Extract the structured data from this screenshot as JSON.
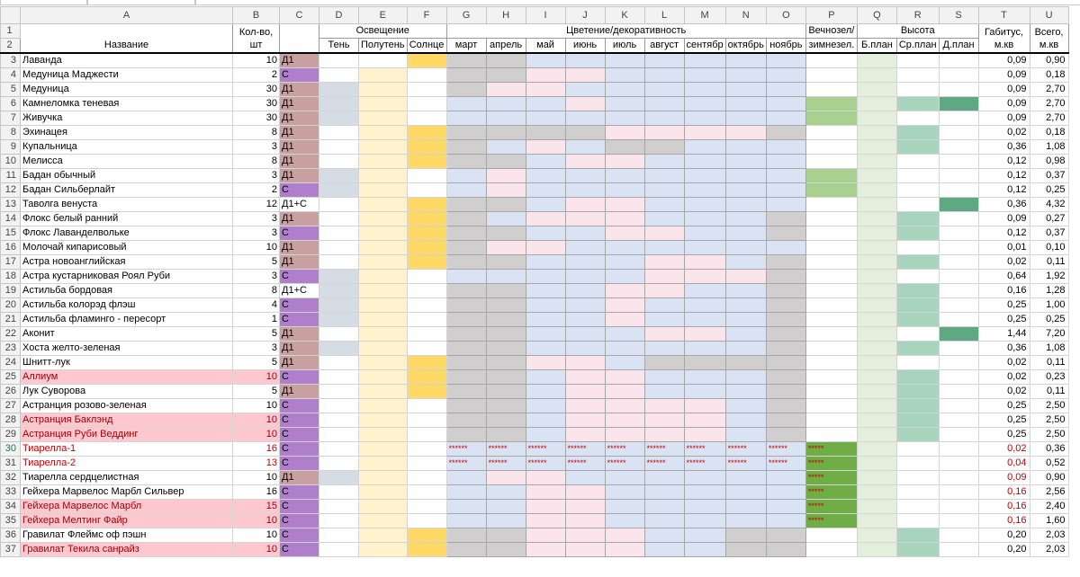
{
  "columns": [
    "A",
    "B",
    "C",
    "D",
    "E",
    "F",
    "G",
    "H",
    "I",
    "J",
    "K",
    "L",
    "M",
    "N",
    "O",
    "P",
    "Q",
    "R",
    "S",
    "T",
    "U"
  ],
  "header": {
    "name": "Название",
    "qty": "Кол-во, шт",
    "lighting": "Освещение",
    "flowering": "Цветение/декоративность",
    "evergreen_line1": "Вечнозел/",
    "evergreen_line2": "зимнезел.",
    "height": "Высота",
    "habitus": "Габитус, м.кв",
    "total": "Всего, м.кв",
    "light_cols": [
      "Тень",
      "Полутень",
      "Солнце"
    ],
    "months": [
      "март",
      "апрель",
      "май",
      "июнь",
      "июль",
      "август",
      "сентябр",
      "октябрь",
      "ноябрь"
    ],
    "height_cols": [
      "Б.план",
      "Ср.план",
      "Д.план"
    ]
  },
  "star_text": "******",
  "rows": [
    {
      "n": 3,
      "name": "Лаванда",
      "qty": "10",
      "type": "Д1",
      "light": "sol",
      "months": "G____________",
      "ev": "",
      "h": "",
      "hab": "0,09",
      "tot": "0,90"
    },
    {
      "n": 4,
      "name": "Медуница Маджести",
      "qty": "2",
      "type": "С",
      "light": "pol",
      "h": "",
      "hab": "0,09",
      "tot": "0,18"
    },
    {
      "n": 5,
      "name": "Медуница",
      "qty": "30",
      "type": "Д1",
      "light": "ten-pol",
      "h": "",
      "hab": "0,09",
      "tot": "2,70"
    },
    {
      "n": 6,
      "name": "Камнеломка теневая",
      "qty": "30",
      "type": "Д1",
      "light": "ten-pol",
      "ev": "g",
      "h": "bsd",
      "hab": "0,09",
      "tot": "2,70"
    },
    {
      "n": 7,
      "name": "Живучка",
      "qty": "30",
      "type": "Д1",
      "light": "ten-pol",
      "ev": "g",
      "h": "b",
      "hab": "0,09",
      "tot": "2,70"
    },
    {
      "n": 8,
      "name": "Эхинацея",
      "qty": "8",
      "type": "Д1",
      "light": "pol-sol",
      "h": "s",
      "hab": "0,02",
      "tot": "0,18"
    },
    {
      "n": 9,
      "name": "Купальница",
      "qty": "3",
      "type": "Д1",
      "light": "pol-sol",
      "h": "s",
      "hab": "0,36",
      "tot": "1,08"
    },
    {
      "n": 10,
      "name": "Мелисса",
      "qty": "8",
      "type": "Д1",
      "light": "pol-sol",
      "h": "",
      "hab": "0,12",
      "tot": "0,98"
    },
    {
      "n": 11,
      "name": "Бадан обычный",
      "qty": "3",
      "type": "Д1",
      "light": "ten-pol",
      "ev": "g",
      "h": "b",
      "hab": "0,12",
      "tot": "0,37"
    },
    {
      "n": 12,
      "name": "Бадан Сильберлайт",
      "qty": "2",
      "type": "С",
      "light": "ten-pol",
      "ev": "g",
      "h": "b",
      "hab": "0,12",
      "tot": "0,25"
    },
    {
      "n": 13,
      "name": "Таволга венуста",
      "qty": "12",
      "type": "Д1+С",
      "light": "pol-sol",
      "h": "d",
      "hab": "0,36",
      "tot": "4,32"
    },
    {
      "n": 14,
      "name": "Флокс белый ранний",
      "qty": "3",
      "type": "Д1",
      "light": "pol-sol",
      "h": "s",
      "hab": "0,09",
      "tot": "0,27"
    },
    {
      "n": 15,
      "name": "Флокс Лаванделвольке",
      "qty": "3",
      "type": "С",
      "light": "pol-sol",
      "h": "s",
      "hab": "0,12",
      "tot": "0,37"
    },
    {
      "n": 16,
      "name": "Молочай кипарисовый",
      "qty": "10",
      "type": "Д1",
      "light": "pol-sol",
      "h": "b",
      "hab": "0,01",
      "tot": "0,10"
    },
    {
      "n": 17,
      "name": "Астра новоанглийская",
      "qty": "5",
      "type": "Д1",
      "light": "pol-sol",
      "h": "s",
      "hab": "0,02",
      "tot": "0,11"
    },
    {
      "n": 18,
      "name": "Астра кустарниковая Роял Руби",
      "qty": "3",
      "type": "С",
      "light": "ten-pol",
      "h": "b",
      "hab": "0,64",
      "tot": "1,92"
    },
    {
      "n": 19,
      "name": "Астильба бордовая",
      "qty": "8",
      "type": "Д1+С",
      "light": "ten-pol",
      "h": "s",
      "hab": "0,16",
      "tot": "1,28"
    },
    {
      "n": 20,
      "name": "Астильба колорэд флэш",
      "qty": "4",
      "type": "С",
      "light": "ten-pol",
      "h": "s",
      "hab": "0,25",
      "tot": "1,00"
    },
    {
      "n": 21,
      "name": "Астильба фламинго - пересорт",
      "qty": "1",
      "type": "С",
      "light": "ten-pol",
      "h": "s",
      "hab": "0,25",
      "tot": "0,25"
    },
    {
      "n": 22,
      "name": "Аконит",
      "qty": "5",
      "type": "Д1",
      "light": "pol",
      "h": "d",
      "hab": "1,44",
      "tot": "7,20"
    },
    {
      "n": 23,
      "name": "Хоста желто-зеленая",
      "qty": "3",
      "type": "Д1",
      "light": "ten-pol",
      "h": "s",
      "hab": "0,36",
      "tot": "1,08"
    },
    {
      "n": 24,
      "name": "Шнитт-лук",
      "qty": "5",
      "type": "Д1",
      "light": "pol-sol",
      "h": "b",
      "hab": "0,02",
      "tot": "0,11"
    },
    {
      "n": 25,
      "name": "Аллиум",
      "qty": "10",
      "type": "С",
      "light": "pol-sol",
      "pink": true,
      "h": "s",
      "hab": "0,02",
      "tot": "0,23"
    },
    {
      "n": 26,
      "name": "Лук Суворова",
      "qty": "5",
      "type": "Д1",
      "light": "pol-sol",
      "h": "s",
      "hab": "0,02",
      "tot": "0,11"
    },
    {
      "n": 27,
      "name": "Астранция розово-зеленая",
      "qty": "10",
      "type": "С",
      "light": "pol",
      "h": "s",
      "hab": "0,25",
      "tot": "2,50"
    },
    {
      "n": 28,
      "name": "Астранция Баклэнд",
      "qty": "10",
      "type": "С",
      "light": "pol",
      "pink": true,
      "h": "s",
      "hab": "0,25",
      "tot": "2,50"
    },
    {
      "n": 29,
      "name": "Астранция Руби Веддинг",
      "qty": "10",
      "type": "С",
      "light": "pol",
      "pink": true,
      "h": "s",
      "hab": "0,25",
      "tot": "2,50"
    },
    {
      "n": 30,
      "name": "Тиарелла-1",
      "qty": "16",
      "type": "С",
      "light": "pol",
      "redtext": true,
      "star": true,
      "ev": "s",
      "h": "b",
      "hab": "0,02",
      "tot": "0,36"
    },
    {
      "n": 31,
      "name": "Тиарелла-2",
      "qty": "13",
      "type": "С",
      "light": "pol",
      "redtext": true,
      "star": true,
      "ev": "s",
      "h": "b",
      "hab": "0,04",
      "tot": "0,52"
    },
    {
      "n": 32,
      "name": "Тиарелла сердцелистная",
      "qty": "10",
      "type": "Д1",
      "light": "ten-pol",
      "ev": "s",
      "h": "b",
      "redhab": true,
      "hab": "0,09",
      "tot": "0,90"
    },
    {
      "n": 33,
      "name": "Гейхера Марвелос Марбл Сильвер",
      "qty": "16",
      "type": "С",
      "light": "pol",
      "ev": "s",
      "h": "b",
      "redhab": true,
      "hab": "0,16",
      "tot": "2,56"
    },
    {
      "n": 34,
      "name": "Гейхера Марвелос Марбл",
      "qty": "15",
      "type": "С",
      "light": "pol",
      "pink": true,
      "ev": "s",
      "h": "b",
      "redhab": true,
      "hab": "0,16",
      "tot": "2,40"
    },
    {
      "n": 35,
      "name": "Гейхера Мелтинг Файр",
      "qty": "10",
      "type": "С",
      "light": "pol",
      "pink": true,
      "ev": "s",
      "h": "b",
      "redhab": true,
      "hab": "0,16",
      "tot": "1,60"
    },
    {
      "n": 36,
      "name": "Гравилат Флеймс оф пэшн",
      "qty": "10",
      "type": "С",
      "light": "pol-sol",
      "h": "s",
      "hab": "0,20",
      "tot": "2,03"
    },
    {
      "n": 37,
      "name": "Гравилат Текила санрайз",
      "qty": "10",
      "type": "С",
      "light": "pol-sol",
      "pink": true,
      "h": "s",
      "hab": "0,20",
      "tot": "2,03"
    }
  ],
  "month_patterns": {
    "3": [
      "gray",
      "gray",
      "blue",
      "blue",
      "blue",
      "blue",
      "blue",
      "blue",
      "blue"
    ],
    "4": [
      "gray",
      "gray",
      "pink",
      "pink",
      "blue",
      "blue",
      "blue",
      "blue",
      "blue"
    ],
    "5": [
      "gray",
      "pink",
      "pink",
      "blue",
      "blue",
      "blue",
      "blue",
      "blue",
      "blue"
    ],
    "6": [
      "blue",
      "blue",
      "blue",
      "pink",
      "blue",
      "blue",
      "blue",
      "blue",
      "blue"
    ],
    "7": [
      "blue",
      "blue",
      "blue",
      "blue",
      "blue",
      "blue",
      "blue",
      "blue",
      "blue"
    ],
    "8": [
      "gray",
      "gray",
      "gray",
      "gray",
      "pink",
      "pink",
      "pink",
      "pink",
      "gray"
    ],
    "9": [
      "gray",
      "blue",
      "pink",
      "blue",
      "gray",
      "gray",
      "blue",
      "blue",
      "blue"
    ],
    "10": [
      "gray",
      "gray",
      "blue",
      "pink",
      "pink",
      "blue",
      "blue",
      "blue",
      "blue"
    ],
    "11": [
      "blue",
      "pink",
      "blue",
      "blue",
      "blue",
      "blue",
      "blue",
      "blue",
      "blue"
    ],
    "12": [
      "blue",
      "pink",
      "blue",
      "blue",
      "blue",
      "blue",
      "blue",
      "blue",
      "blue"
    ],
    "13": [
      "gray",
      "gray",
      "blue",
      "pink",
      "pink",
      "blue",
      "blue",
      "blue",
      "blue"
    ],
    "14": [
      "gray",
      "blue",
      "pink",
      "pink",
      "pink",
      "blue",
      "blue",
      "blue",
      "gray"
    ],
    "15": [
      "gray",
      "gray",
      "blue",
      "blue",
      "pink",
      "pink",
      "blue",
      "blue",
      "gray"
    ],
    "16": [
      "gray",
      "pink",
      "pink",
      "blue",
      "blue",
      "blue",
      "blue",
      "blue",
      "blue"
    ],
    "17": [
      "gray",
      "gray",
      "blue",
      "blue",
      "blue",
      "pink",
      "pink",
      "blue",
      "gray"
    ],
    "18": [
      "blue",
      "blue",
      "blue",
      "blue",
      "blue",
      "pink",
      "pink",
      "pink",
      "gray"
    ],
    "19": [
      "gray",
      "gray",
      "blue",
      "blue",
      "pink",
      "pink",
      "blue",
      "blue",
      "gray"
    ],
    "20": [
      "gray",
      "gray",
      "blue",
      "blue",
      "pink",
      "blue",
      "blue",
      "blue",
      "gray"
    ],
    "21": [
      "gray",
      "gray",
      "blue",
      "blue",
      "pink",
      "blue",
      "blue",
      "blue",
      "gray"
    ],
    "22": [
      "gray",
      "gray",
      "blue",
      "blue",
      "blue",
      "pink",
      "pink",
      "blue",
      "gray"
    ],
    "23": [
      "gray",
      "gray",
      "blue",
      "blue",
      "blue",
      "blue",
      "blue",
      "blue",
      "gray"
    ],
    "24": [
      "gray",
      "gray",
      "pink",
      "pink",
      "blue",
      "gray",
      "gray",
      "gray",
      "gray"
    ],
    "25": [
      "gray",
      "gray",
      "blue",
      "pink",
      "pink",
      "blue",
      "blue",
      "blue",
      "gray"
    ],
    "26": [
      "gray",
      "gray",
      "blue",
      "pink",
      "pink",
      "blue",
      "blue",
      "blue",
      "gray"
    ],
    "27": [
      "gray",
      "gray",
      "blue",
      "pink",
      "pink",
      "pink",
      "pink",
      "blue",
      "gray"
    ],
    "28": [
      "gray",
      "gray",
      "blue",
      "pink",
      "pink",
      "pink",
      "pink",
      "blue",
      "gray"
    ],
    "29": [
      "gray",
      "gray",
      "blue",
      "pink",
      "pink",
      "pink",
      "pink",
      "blue",
      "gray"
    ],
    "30": [
      "blue",
      "blue",
      "blue",
      "blue",
      "blue",
      "blue",
      "blue",
      "blue",
      "blue"
    ],
    "31": [
      "blue",
      "blue",
      "blue",
      "blue",
      "blue",
      "blue",
      "blue",
      "blue",
      "blue"
    ],
    "32": [
      "blue",
      "pink",
      "pink",
      "blue",
      "blue",
      "blue",
      "blue",
      "blue",
      "blue"
    ],
    "33": [
      "blue",
      "blue",
      "pink",
      "pink",
      "blue",
      "blue",
      "blue",
      "blue",
      "blue"
    ],
    "34": [
      "blue",
      "blue",
      "pink",
      "pink",
      "blue",
      "blue",
      "blue",
      "blue",
      "blue"
    ],
    "35": [
      "blue",
      "blue",
      "pink",
      "pink",
      "blue",
      "blue",
      "blue",
      "blue",
      "blue"
    ],
    "36": [
      "gray",
      "gray",
      "pink",
      "pink",
      "pink",
      "blue",
      "blue",
      "gray",
      "gray"
    ],
    "37": [
      "gray",
      "gray",
      "pink",
      "pink",
      "pink",
      "blue",
      "blue",
      "gray",
      "gray"
    ]
  },
  "colors": {
    "type_D1": "#c9a0a0",
    "type_C": "#b07fcc",
    "shade": "#d6dce4",
    "part_sun": "#fff2cc",
    "sun": "#ffd966",
    "month_gray": "#d0cece",
    "month_pink": "#fce4ec",
    "month_blue": "#dae3f3",
    "evergreen": "#a9d08e",
    "evergreen_star": "#70ad47",
    "front": "#e2efda",
    "middle": "#a9d5bf",
    "back": "#5fa882",
    "pink_row": "#ffc7ce",
    "red_text": "#c00000"
  }
}
